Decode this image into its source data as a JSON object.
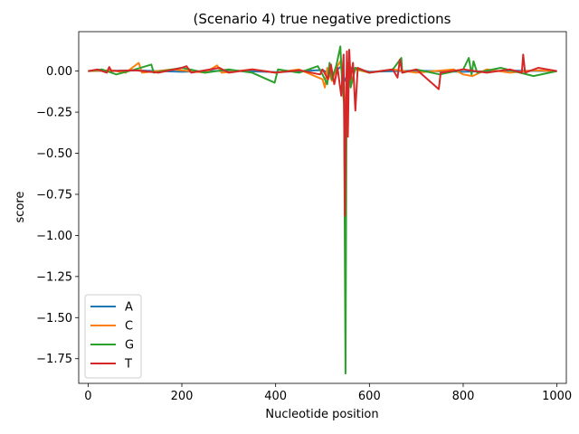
{
  "chart_data": {
    "type": "line",
    "title": "(Scenario 4) true negative predictions",
    "xlabel": "Nucleotide position",
    "ylabel": "score",
    "xlim": [
      -20,
      1020
    ],
    "ylim": [
      -1.9,
      0.24
    ],
    "xticks": [
      0,
      200,
      400,
      600,
      800,
      1000
    ],
    "yticks": [
      0.0,
      -0.25,
      -0.5,
      -0.75,
      -1.0,
      -1.25,
      -1.5,
      -1.75
    ],
    "ytick_labels": [
      "0.00",
      "−0.25",
      "−0.50",
      "−0.75",
      "−1.00",
      "−1.25",
      "−1.50",
      "−1.75"
    ],
    "legend_position": "lower-left",
    "grid": false,
    "series": [
      {
        "name": "A",
        "color": "#1f77b4",
        "points": [
          [
            0,
            0
          ],
          [
            100,
            0.004
          ],
          [
            200,
            -0.004
          ],
          [
            300,
            0.003
          ],
          [
            400,
            -0.006
          ],
          [
            500,
            0.006
          ],
          [
            520,
            -0.02
          ],
          [
            540,
            0.03
          ],
          [
            548,
            -0.06
          ],
          [
            560,
            0.02
          ],
          [
            600,
            -0.004
          ],
          [
            700,
            0.003
          ],
          [
            800,
            -0.004
          ],
          [
            900,
            0.003
          ],
          [
            1000,
            0
          ]
        ]
      },
      {
        "name": "C",
        "color": "#ff7f0e",
        "points": [
          [
            0,
            0
          ],
          [
            50,
            0.005
          ],
          [
            80,
            -0.01
          ],
          [
            108,
            0.05
          ],
          [
            115,
            -0.01
          ],
          [
            180,
            0.01
          ],
          [
            250,
            -0.01
          ],
          [
            275,
            0.035
          ],
          [
            285,
            -0.01
          ],
          [
            350,
            0.01
          ],
          [
            400,
            -0.01
          ],
          [
            450,
            0.01
          ],
          [
            500,
            -0.05
          ],
          [
            505,
            -0.1
          ],
          [
            510,
            0.02
          ],
          [
            520,
            -0.06
          ],
          [
            530,
            0.02
          ],
          [
            538,
            0.06
          ],
          [
            545,
            -0.1
          ],
          [
            548,
            -0.3
          ],
          [
            552,
            0.02
          ],
          [
            560,
            -0.08
          ],
          [
            570,
            0.01
          ],
          [
            600,
            -0.01
          ],
          [
            650,
            0.01
          ],
          [
            700,
            -0.01
          ],
          [
            780,
            0.01
          ],
          [
            800,
            -0.02
          ],
          [
            820,
            -0.03
          ],
          [
            850,
            0.01
          ],
          [
            900,
            -0.01
          ],
          [
            950,
            0.005
          ],
          [
            1000,
            0
          ]
        ]
      },
      {
        "name": "G",
        "color": "#2ca02c",
        "points": [
          [
            0,
            0
          ],
          [
            30,
            0.01
          ],
          [
            60,
            -0.02
          ],
          [
            100,
            0.01
          ],
          [
            135,
            0.04
          ],
          [
            140,
            -0.01
          ],
          [
            200,
            0.02
          ],
          [
            250,
            -0.01
          ],
          [
            300,
            0.01
          ],
          [
            350,
            -0.01
          ],
          [
            398,
            -0.07
          ],
          [
            405,
            0.01
          ],
          [
            450,
            -0.01
          ],
          [
            490,
            0.03
          ],
          [
            500,
            -0.02
          ],
          [
            510,
            -0.08
          ],
          [
            515,
            0.05
          ],
          [
            520,
            -0.05
          ],
          [
            530,
            0.04
          ],
          [
            538,
            0.15
          ],
          [
            542,
            -0.08
          ],
          [
            546,
            -0.2
          ],
          [
            549,
            -1.84
          ],
          [
            551,
            -0.4
          ],
          [
            555,
            0.05
          ],
          [
            560,
            -0.1
          ],
          [
            570,
            0.02
          ],
          [
            600,
            -0.01
          ],
          [
            650,
            0.01
          ],
          [
            668,
            0.08
          ],
          [
            670,
            -0.01
          ],
          [
            700,
            0.01
          ],
          [
            750,
            -0.02
          ],
          [
            800,
            0.01
          ],
          [
            812,
            0.08
          ],
          [
            818,
            -0.02
          ],
          [
            822,
            0.06
          ],
          [
            830,
            -0.01
          ],
          [
            880,
            0.02
          ],
          [
            950,
            -0.03
          ],
          [
            1000,
            0
          ]
        ]
      },
      {
        "name": "T",
        "color": "#d62728",
        "points": [
          [
            0,
            0
          ],
          [
            20,
            0.01
          ],
          [
            40,
            -0.01
          ],
          [
            45,
            0.025
          ],
          [
            50,
            0
          ],
          [
            100,
            0.005
          ],
          [
            150,
            -0.01
          ],
          [
            200,
            0.02
          ],
          [
            210,
            0.03
          ],
          [
            220,
            -0.01
          ],
          [
            280,
            0.02
          ],
          [
            300,
            -0.01
          ],
          [
            350,
            0.01
          ],
          [
            400,
            -0.01
          ],
          [
            450,
            0.005
          ],
          [
            495,
            -0.02
          ],
          [
            500,
            0.01
          ],
          [
            512,
            -0.05
          ],
          [
            518,
            0.04
          ],
          [
            525,
            -0.08
          ],
          [
            532,
            0.02
          ],
          [
            540,
            -0.15
          ],
          [
            545,
            0.1
          ],
          [
            548,
            -0.88
          ],
          [
            550,
            -0.2
          ],
          [
            552,
            0.12
          ],
          [
            554,
            -0.4
          ],
          [
            557,
            0.13
          ],
          [
            560,
            -0.05
          ],
          [
            565,
            0.05
          ],
          [
            570,
            -0.24
          ],
          [
            575,
            0.02
          ],
          [
            600,
            -0.01
          ],
          [
            650,
            0.01
          ],
          [
            660,
            -0.04
          ],
          [
            665,
            0.07
          ],
          [
            670,
            -0.01
          ],
          [
            700,
            0.01
          ],
          [
            748,
            -0.11
          ],
          [
            752,
            -0.01
          ],
          [
            800,
            0.01
          ],
          [
            850,
            -0.01
          ],
          [
            900,
            0.01
          ],
          [
            925,
            -0.01
          ],
          [
            928,
            0.1
          ],
          [
            932,
            -0.01
          ],
          [
            960,
            0.02
          ],
          [
            1000,
            0
          ]
        ]
      }
    ]
  }
}
